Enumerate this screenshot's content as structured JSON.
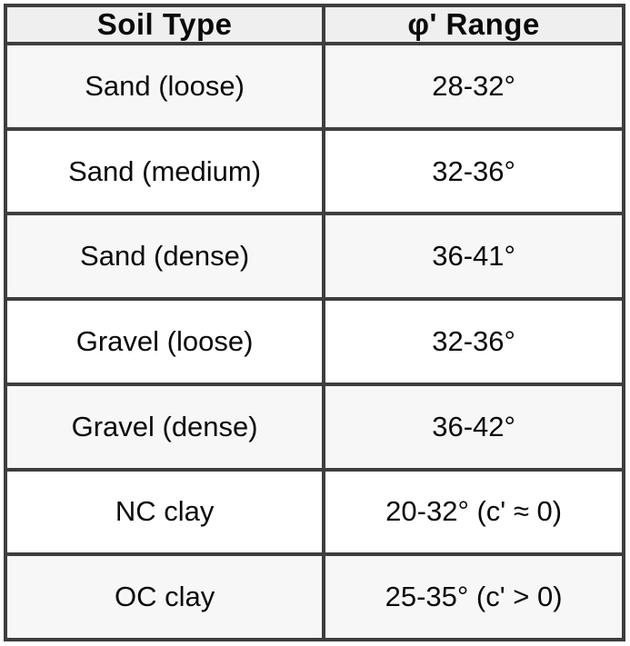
{
  "table": {
    "columns": [
      {
        "label": "Soil Type"
      },
      {
        "label": "φ' Range"
      }
    ],
    "rows": [
      {
        "cells": [
          "Sand (loose)",
          "28-32°"
        ]
      },
      {
        "cells": [
          "Sand (medium)",
          "32-36°"
        ]
      },
      {
        "cells": [
          "Sand (dense)",
          "36-41°"
        ]
      },
      {
        "cells": [
          "Gravel (loose)",
          "32-36°"
        ]
      },
      {
        "cells": [
          "Gravel (dense)",
          "36-42°"
        ]
      },
      {
        "cells": [
          "NC clay",
          "20-32° (c' ≈ 0)"
        ]
      },
      {
        "cells": [
          "OC clay",
          "25-35° (c' > 0)"
        ]
      }
    ],
    "colors": {
      "border": "#3e3e3e",
      "header_bg": "#efefef",
      "row_alt_bg": "#f7f7f7",
      "row_bg": "#ffffff",
      "text": "#0a0a0a"
    }
  },
  "chart_data": {
    "type": "table",
    "title": "",
    "columns": [
      "Soil Type",
      "φ' Range"
    ],
    "rows": [
      [
        "Sand (loose)",
        "28-32°"
      ],
      [
        "Sand (medium)",
        "32-36°"
      ],
      [
        "Sand (dense)",
        "36-41°"
      ],
      [
        "Gravel (loose)",
        "32-36°"
      ],
      [
        "Gravel (dense)",
        "36-42°"
      ],
      [
        "NC clay",
        "20-32° (c' ≈ 0)"
      ],
      [
        "OC clay",
        "25-35° (c' > 0)"
      ]
    ],
    "notes": {
      "phi_prime_ranges_degrees": {
        "Sand (loose)": [
          28,
          32
        ],
        "Sand (medium)": [
          32,
          36
        ],
        "Sand (dense)": [
          36,
          41
        ],
        "Gravel (loose)": [
          32,
          36
        ],
        "Gravel (dense)": [
          36,
          42
        ],
        "NC clay": [
          20,
          32
        ],
        "OC clay": [
          25,
          35
        ]
      },
      "cohesion": {
        "NC clay": "c' ≈ 0",
        "OC clay": "c' > 0"
      }
    }
  }
}
